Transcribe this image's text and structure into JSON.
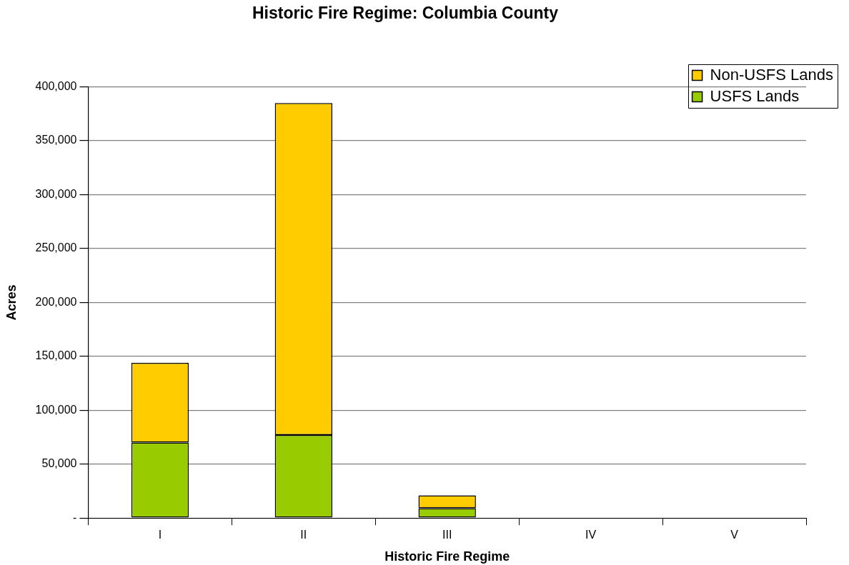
{
  "chart_data": {
    "type": "bar",
    "title": "Historic Fire Regime: Columbia County",
    "xlabel": "Historic Fire Regime",
    "ylabel": "Acres",
    "categories": [
      "I",
      "II",
      "III",
      "IV",
      "V"
    ],
    "series": [
      {
        "name": "USFS Lands",
        "color": "#99cc00",
        "values": [
          70000,
          77000,
          9000,
          0,
          0
        ]
      },
      {
        "name": "Non-USFS Lands",
        "color": "#ffcc00",
        "values": [
          74000,
          308000,
          12000,
          0,
          0
        ]
      }
    ],
    "stacked": true,
    "ylim": [
      0,
      400000
    ],
    "yticks": [
      {
        "value": 0,
        "label": "-"
      },
      {
        "value": 50000,
        "label": "50,000"
      },
      {
        "value": 100000,
        "label": "100,000"
      },
      {
        "value": 150000,
        "label": "150,000"
      },
      {
        "value": 200000,
        "label": "200,000"
      },
      {
        "value": 250000,
        "label": "250,000"
      },
      {
        "value": 300000,
        "label": "300,000"
      },
      {
        "value": 350000,
        "label": "350,000"
      },
      {
        "value": 400000,
        "label": "400,000"
      }
    ],
    "grid": "y",
    "legend": "top right"
  }
}
